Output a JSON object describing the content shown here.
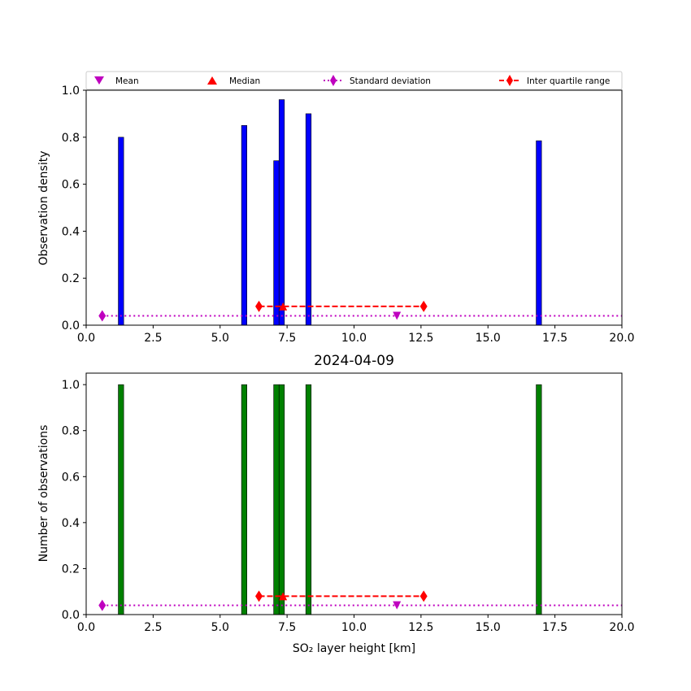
{
  "legend": {
    "mean": "Mean",
    "median": "Median",
    "std": "Standard deviation",
    "iqr": "Inter quartile range"
  },
  "colors": {
    "density_bars": "#0000ff",
    "count_bars": "#008000",
    "mean": "#bf00bf",
    "median": "#ff0000",
    "std": "#bf00bf",
    "iqr": "#ff0000"
  },
  "chart_data": [
    {
      "type": "bar",
      "xlabel": "",
      "ylabel": "Observation density",
      "xlim": [
        0,
        20
      ],
      "ylim": [
        0,
        1.0
      ],
      "xticks": [
        "0.0",
        "2.5",
        "5.0",
        "7.5",
        "10.0",
        "12.5",
        "15.0",
        "17.5",
        "20.0"
      ],
      "yticks": [
        "0.0",
        "0.2",
        "0.4",
        "0.6",
        "0.8",
        "1.0"
      ],
      "bar_width": 0.2,
      "bars": [
        {
          "x": 1.3,
          "y": 0.8
        },
        {
          "x": 5.9,
          "y": 0.85
        },
        {
          "x": 7.1,
          "y": 0.7
        },
        {
          "x": 7.3,
          "y": 0.96
        },
        {
          "x": 8.3,
          "y": 0.9
        },
        {
          "x": 16.9,
          "y": 0.785
        }
      ],
      "mean": {
        "x": 11.6,
        "y": 0.04
      },
      "median": {
        "x": 7.35,
        "y": 0.08
      },
      "std": {
        "x": [
          0.6,
          20.0
        ],
        "y": 0.04
      },
      "iqr": {
        "x": [
          6.45,
          12.6
        ],
        "y": 0.08
      }
    },
    {
      "type": "bar",
      "title": "2024-04-09",
      "xlabel": "SO₂ layer height [km]",
      "ylabel": "Number of observations",
      "xlim": [
        0,
        20
      ],
      "ylim": [
        0,
        1.05
      ],
      "xticks": [
        "0.0",
        "2.5",
        "5.0",
        "7.5",
        "10.0",
        "12.5",
        "15.0",
        "17.5",
        "20.0"
      ],
      "yticks": [
        "0.0",
        "0.2",
        "0.4",
        "0.6",
        "0.8",
        "1.0"
      ],
      "bar_width": 0.2,
      "bars": [
        {
          "x": 1.3,
          "y": 1.0
        },
        {
          "x": 5.9,
          "y": 1.0
        },
        {
          "x": 7.1,
          "y": 1.0
        },
        {
          "x": 7.3,
          "y": 1.0
        },
        {
          "x": 8.3,
          "y": 1.0
        },
        {
          "x": 16.9,
          "y": 1.0
        }
      ],
      "mean": {
        "x": 11.6,
        "y": 0.04
      },
      "median": {
        "x": 7.35,
        "y": 0.08
      },
      "std": {
        "x": [
          0.6,
          20.0
        ],
        "y": 0.04
      },
      "iqr": {
        "x": [
          6.45,
          12.6
        ],
        "y": 0.08
      }
    }
  ]
}
